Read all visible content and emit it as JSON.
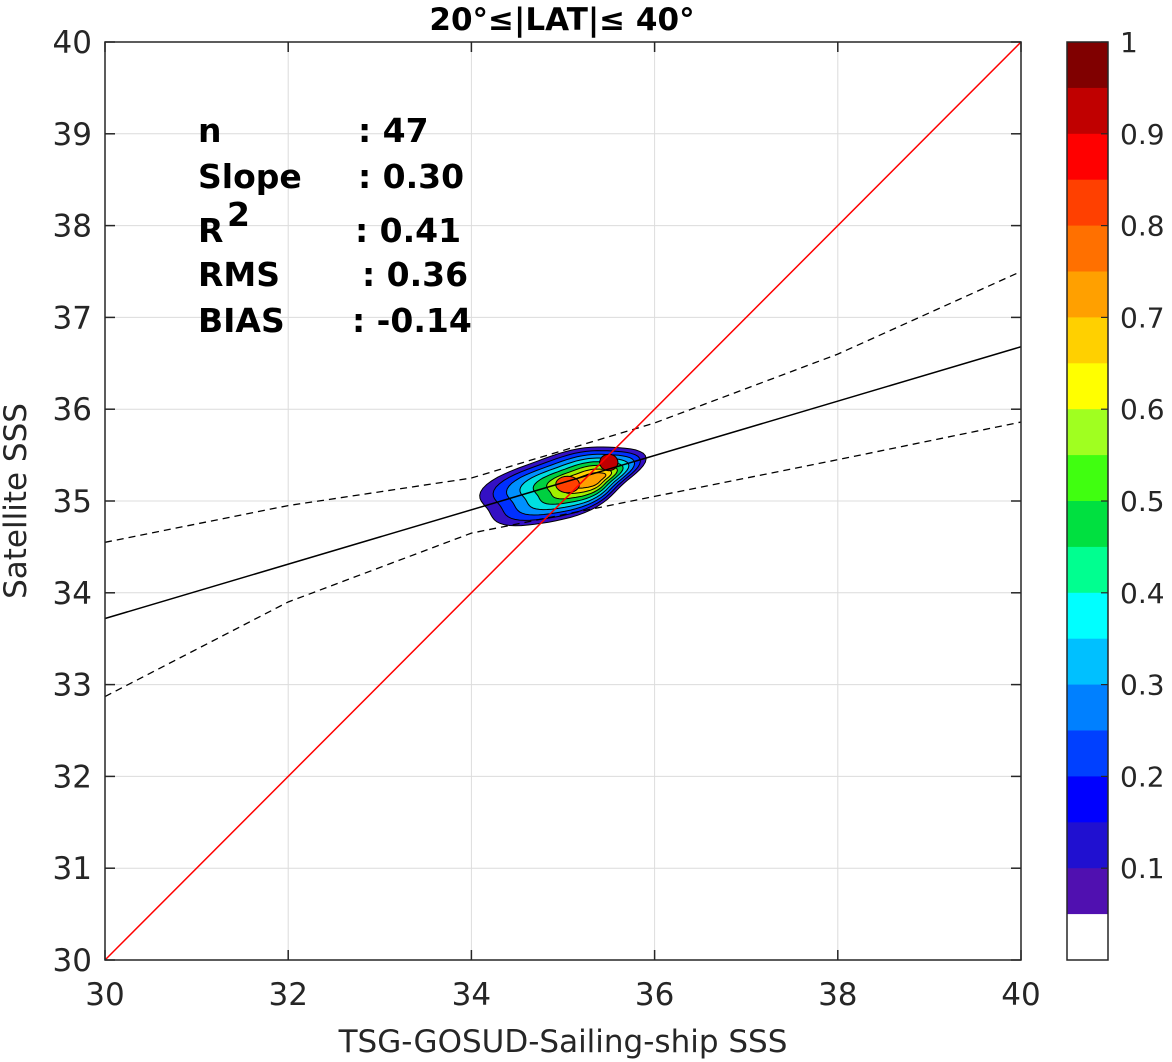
{
  "chart_data": {
    "type": "contour",
    "title": "20°≤|LAT|≤ 40°",
    "xlabel": "TSG-GOSUD-Sailing-ship SSS",
    "ylabel": "Satellite SSS",
    "xlim": [
      30,
      40
    ],
    "ylim": [
      30,
      40
    ],
    "xticks": [
      "30",
      "32",
      "34",
      "36",
      "38",
      "40"
    ],
    "yticks": [
      "30",
      "31",
      "32",
      "33",
      "34",
      "35",
      "36",
      "37",
      "38",
      "39",
      "40"
    ],
    "grid": true,
    "stats": [
      {
        "label": "n",
        "value": ": 47"
      },
      {
        "label": "Slope",
        "value": ": 0.30"
      },
      {
        "label": "R",
        "sup": "2",
        "value": ": 0.41"
      },
      {
        "label": "RMS",
        "value": ": 0.36"
      },
      {
        "label": "BIAS",
        "value": ": -0.14"
      }
    ],
    "lines": {
      "identity": {
        "x": [
          30,
          40
        ],
        "y": [
          30,
          40
        ],
        "color": "#ff0000"
      },
      "regression": {
        "x": [
          30,
          40
        ],
        "y": [
          33.72,
          36.68
        ],
        "color": "#000000"
      },
      "confidence_upper": {
        "x": [
          30,
          32,
          34,
          36,
          38,
          40
        ],
        "y": [
          34.55,
          34.95,
          35.25,
          35.85,
          36.6,
          37.5
        ]
      },
      "confidence_lower": {
        "x": [
          30,
          32,
          34,
          36,
          38,
          40
        ],
        "y": [
          32.87,
          33.9,
          34.65,
          35.05,
          35.45,
          35.86
        ]
      }
    },
    "density_peaks": [
      {
        "x": 35.5,
        "y": 35.42,
        "value": 1.0
      },
      {
        "x": 35.05,
        "y": 35.18,
        "value": 0.85
      }
    ],
    "colorbar": {
      "ticks": [
        "1",
        "0.9",
        "0.8",
        "0.7",
        "0.6",
        "0.5",
        "0.4",
        "0.3",
        "0.2",
        "0.1"
      ],
      "range": [
        0,
        1
      ],
      "colors_top_to_bottom": [
        "#800000",
        "#c00000",
        "#ff0000",
        "#ff4000",
        "#ff7000",
        "#ffa000",
        "#ffd000",
        "#ffff00",
        "#a0ff20",
        "#40ff10",
        "#00e040",
        "#00ff90",
        "#00ffff",
        "#00c0ff",
        "#0080ff",
        "#0040ff",
        "#0000ff",
        "#2010d0",
        "#5010b0",
        "#ffffff"
      ]
    }
  }
}
